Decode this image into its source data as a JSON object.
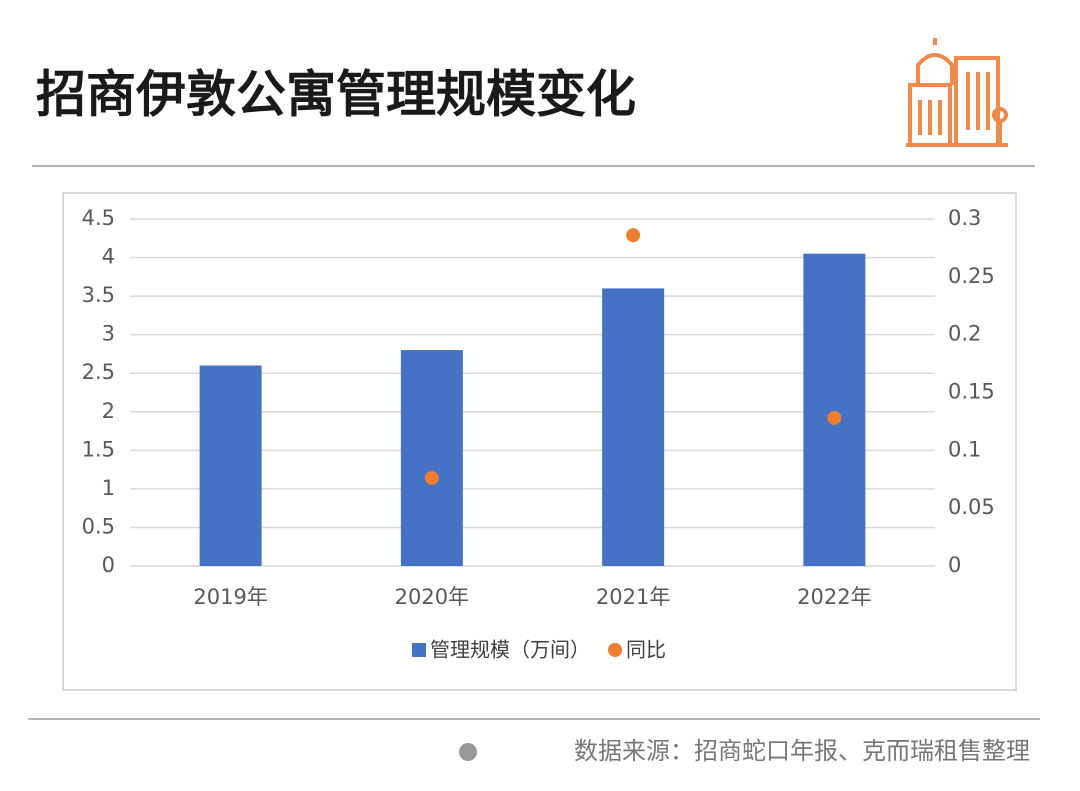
{
  "header": {
    "title": "招商伊敦公寓管理规模变化"
  },
  "chart_data": {
    "type": "bar",
    "categories": [
      "2019年",
      "2020年",
      "2021年",
      "2022年"
    ],
    "series": [
      {
        "name": "管理规模（万间）",
        "type": "bar",
        "color": "#4472c4",
        "values": [
          2.6,
          2.8,
          3.6,
          4.05
        ]
      },
      {
        "name": "同比",
        "type": "scatter",
        "axis": "y2",
        "color": "#ed7d31",
        "values": [
          null,
          0.076,
          0.286,
          0.128
        ]
      }
    ],
    "ylim": [
      0,
      4.5
    ],
    "yticks": [
      0,
      0.5,
      1,
      1.5,
      2,
      2.5,
      3,
      3.5,
      4,
      4.5
    ],
    "y2lim": [
      0,
      0.3
    ],
    "y2ticks": [
      0,
      0.05,
      0.1,
      0.15,
      0.2,
      0.25,
      0.3
    ],
    "grid": true,
    "legend": "bottom"
  },
  "footer": {
    "source": "数据来源：招商蛇口年报、克而瑞租售整理"
  }
}
